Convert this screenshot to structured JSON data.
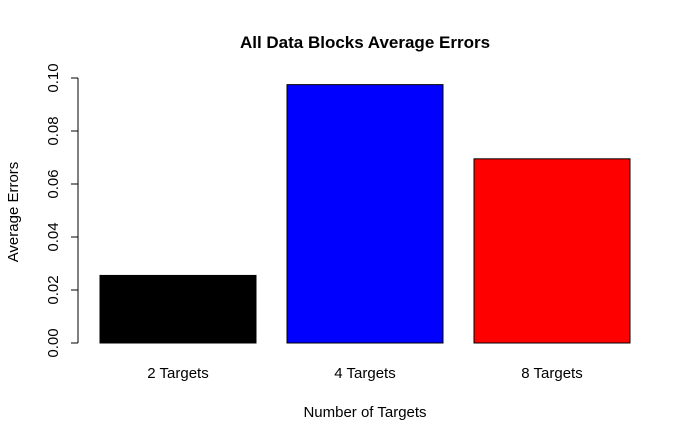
{
  "chart_data": {
    "type": "bar",
    "title": "All Data Blocks Average Errors",
    "xlabel": "Number of Targets",
    "ylabel": "Average Errors",
    "categories": [
      "2 Targets",
      "4 Targets",
      "8 Targets"
    ],
    "values": [
      0.0255,
      0.0975,
      0.0695
    ],
    "colors": [
      "#000000",
      "#0000ff",
      "#ff0000"
    ],
    "ylim": [
      0,
      0.1
    ],
    "yticks": [
      0.0,
      0.02,
      0.04,
      0.06,
      0.08,
      0.1
    ],
    "ytick_labels": [
      "0.00",
      "0.02",
      "0.04",
      "0.06",
      "0.08",
      "0.10"
    ],
    "grid": false,
    "legend": false
  }
}
